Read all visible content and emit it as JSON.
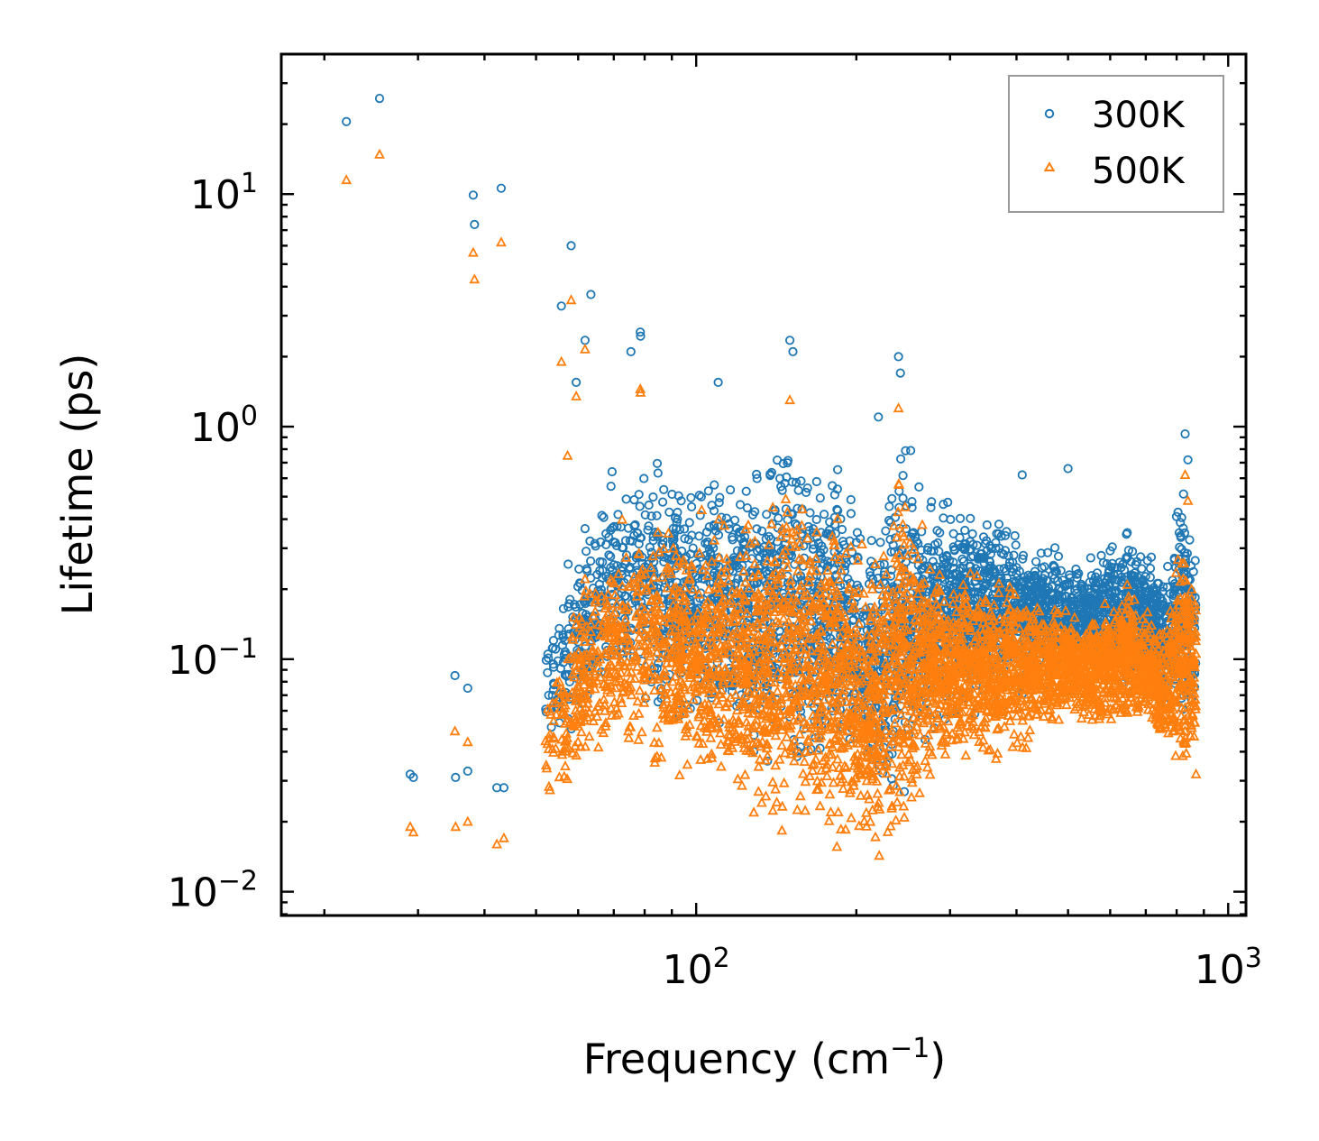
{
  "chart_data": {
    "type": "scatter",
    "title": "",
    "xlabel": "Frequency (cm",
    "xlabel_sup": "−1",
    "xlabel_suffix": ")",
    "ylabel": "Lifetime (ps)",
    "xscale": "log",
    "yscale": "log",
    "xlim": [
      16.6,
      1080
    ],
    "ylim": [
      0.0079,
      40
    ],
    "xticks": [
      {
        "value": 100,
        "base": "10",
        "exp": "2"
      },
      {
        "value": 1000,
        "base": "10",
        "exp": "3"
      }
    ],
    "yticks": [
      {
        "value": 0.01,
        "base": "10",
        "exp": "−2"
      },
      {
        "value": 0.1,
        "base": "10",
        "exp": "−1"
      },
      {
        "value": 1,
        "base": "10",
        "exp": "0"
      },
      {
        "value": 10,
        "base": "10",
        "exp": "1"
      }
    ],
    "legend_position": "top-right",
    "series": [
      {
        "name": "300K",
        "color": "#1f77b4",
        "marker": "circle",
        "sample_points": [
          [
            22.0,
            20.5
          ],
          [
            25.4,
            25.8
          ],
          [
            38.1,
            9.9
          ],
          [
            38.3,
            7.4
          ],
          [
            43.0,
            10.6
          ],
          [
            29.0,
            0.032
          ],
          [
            29.4,
            0.031
          ],
          [
            35.2,
            0.085
          ],
          [
            37.2,
            0.075
          ],
          [
            35.3,
            0.031
          ],
          [
            37.2,
            0.033
          ],
          [
            42.2,
            0.028
          ],
          [
            43.5,
            0.028
          ],
          [
            55.8,
            3.3
          ],
          [
            58.2,
            6.0
          ],
          [
            59.5,
            1.55
          ],
          [
            61.8,
            2.35
          ],
          [
            63.4,
            3.7
          ],
          [
            78.5,
            2.55
          ],
          [
            78.6,
            2.45
          ],
          [
            75.4,
            2.1
          ],
          [
            110.0,
            1.55
          ],
          [
            150.0,
            2.35
          ],
          [
            152.0,
            2.1
          ],
          [
            240.0,
            2.0
          ],
          [
            242.0,
            1.7
          ],
          [
            220.0,
            1.1
          ],
          [
            500.0,
            0.66
          ],
          [
            410.0,
            0.62
          ],
          [
            830.0,
            0.93
          ],
          [
            840.0,
            0.72
          ]
        ],
        "envelope_top": [
          [
            52,
            0.14
          ],
          [
            60,
            0.4
          ],
          [
            70,
            0.8
          ],
          [
            85,
            0.9
          ],
          [
            100,
            0.8
          ],
          [
            120,
            0.9
          ],
          [
            150,
            1.2
          ],
          [
            180,
            0.9
          ],
          [
            220,
            0.45
          ],
          [
            240,
            1.6
          ],
          [
            270,
            0.6
          ],
          [
            300,
            0.55
          ],
          [
            400,
            0.45
          ],
          [
            500,
            0.3
          ],
          [
            600,
            0.35
          ],
          [
            650,
            0.42
          ],
          [
            700,
            0.3
          ],
          [
            760,
            0.3
          ],
          [
            820,
            0.7
          ],
          [
            870,
            0.4
          ]
        ],
        "envelope_bottom": [
          [
            52,
            0.035
          ],
          [
            60,
            0.045
          ],
          [
            70,
            0.05
          ],
          [
            85,
            0.045
          ],
          [
            100,
            0.04
          ],
          [
            120,
            0.03
          ],
          [
            150,
            0.022
          ],
          [
            180,
            0.025
          ],
          [
            220,
            0.02
          ],
          [
            240,
            0.015
          ],
          [
            270,
            0.035
          ],
          [
            300,
            0.05
          ],
          [
            400,
            0.06
          ],
          [
            500,
            0.08
          ],
          [
            600,
            0.07
          ],
          [
            650,
            0.07
          ],
          [
            700,
            0.08
          ],
          [
            760,
            0.05
          ],
          [
            820,
            0.04
          ],
          [
            870,
            0.04
          ]
        ]
      },
      {
        "name": "500K",
        "color": "#ff7f0e",
        "marker": "triangle",
        "sample_points": [
          [
            22.0,
            11.5
          ],
          [
            25.4,
            14.8
          ],
          [
            38.1,
            5.6
          ],
          [
            38.3,
            4.3
          ],
          [
            43.0,
            6.2
          ],
          [
            29.0,
            0.019
          ],
          [
            29.4,
            0.018
          ],
          [
            35.2,
            0.049
          ],
          [
            37.2,
            0.044
          ],
          [
            35.3,
            0.019
          ],
          [
            37.2,
            0.02
          ],
          [
            42.2,
            0.016
          ],
          [
            43.5,
            0.017
          ],
          [
            55.8,
            1.9
          ],
          [
            58.2,
            3.5
          ],
          [
            59.5,
            1.35
          ],
          [
            61.8,
            2.15
          ],
          [
            57.3,
            0.75
          ],
          [
            78.5,
            1.45
          ],
          [
            78.6,
            1.4
          ],
          [
            150.0,
            1.3
          ],
          [
            240.0,
            1.2
          ],
          [
            830.0,
            0.62
          ],
          [
            840.0,
            0.48
          ],
          [
            870.0,
            0.032
          ]
        ],
        "envelope_top": [
          [
            52,
            0.08
          ],
          [
            60,
            0.25
          ],
          [
            70,
            0.45
          ],
          [
            85,
            0.5
          ],
          [
            100,
            0.45
          ],
          [
            120,
            0.55
          ],
          [
            150,
            0.75
          ],
          [
            180,
            0.55
          ],
          [
            220,
            0.3
          ],
          [
            240,
            1.0
          ],
          [
            270,
            0.35
          ],
          [
            300,
            0.3
          ],
          [
            400,
            0.25
          ],
          [
            500,
            0.17
          ],
          [
            600,
            0.2
          ],
          [
            650,
            0.25
          ],
          [
            700,
            0.18
          ],
          [
            760,
            0.17
          ],
          [
            820,
            0.45
          ],
          [
            870,
            0.25
          ]
        ],
        "envelope_bottom": [
          [
            52,
            0.021
          ],
          [
            60,
            0.025
          ],
          [
            70,
            0.028
          ],
          [
            85,
            0.025
          ],
          [
            100,
            0.022
          ],
          [
            120,
            0.016
          ],
          [
            150,
            0.012
          ],
          [
            180,
            0.014
          ],
          [
            220,
            0.012
          ],
          [
            240,
            0.013
          ],
          [
            270,
            0.02
          ],
          [
            300,
            0.028
          ],
          [
            400,
            0.035
          ],
          [
            500,
            0.05
          ],
          [
            600,
            0.045
          ],
          [
            650,
            0.045
          ],
          [
            700,
            0.05
          ],
          [
            760,
            0.035
          ],
          [
            820,
            0.025
          ],
          [
            870,
            0.03
          ]
        ]
      }
    ]
  }
}
